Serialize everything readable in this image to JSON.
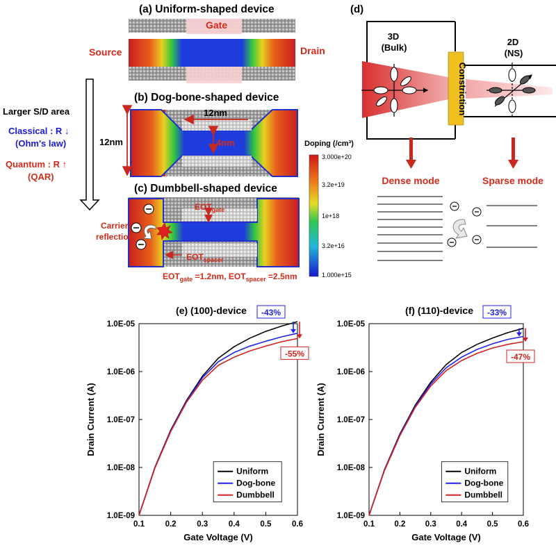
{
  "colors": {
    "blue_text": "#1a1adc",
    "red_text": "#d42a1a",
    "uniform": "#000000",
    "dogbone": "#2222ee",
    "dumbbell": "#d42020",
    "gold": "#f0c020"
  },
  "panel_a": {
    "title": "(a) Uniform-shaped device",
    "gate": "Gate",
    "source": "Source",
    "drain": "Drain"
  },
  "panel_b": {
    "title": "(b) Dog-bone-shaped device",
    "width_label": "12nm",
    "channel_label": "4nm",
    "height_label": "12nm"
  },
  "panel_c": {
    "title": "(c) Dumbbell-shaped device",
    "carrier_reflection_1": "Carrier",
    "carrier_reflection_2": "reflection",
    "eot_gate_main": "EOT",
    "eot_gate_sub": "gate",
    "eot_spacer_main": "EOT",
    "eot_spacer_sub": "spacer",
    "eq_gate_main": "EOT",
    "eq_gate_sub": "gate",
    "eq_gate_val": " =1.2nm,  ",
    "eq_spacer_main": "EOT",
    "eq_spacer_sub": "spacer",
    "eq_spacer_val": " =2.5nm",
    "electron": "⊖"
  },
  "left_text": {
    "larger": "Larger S/D area",
    "classical": "Classical : R ↓",
    "ohm": "(Ohm's law)",
    "quantum": "Quantum : R ↑",
    "qar": "(QAR)"
  },
  "colorbar": {
    "title": "Doping (/cm³)",
    "ticks": [
      "3.000e+20",
      "3.2e+19",
      "1e+18",
      "3.2e+16",
      "1.000e+15"
    ]
  },
  "panel_d": {
    "title": "(d)",
    "bulk_1": "3D",
    "bulk_2": "(Bulk)",
    "ns_1": "2D",
    "ns_2": "(NS)",
    "constriction": "Constriction",
    "dense": "Dense mode",
    "sparse": "Sparse mode",
    "electron": "⊖"
  },
  "chart_data": [
    {
      "type": "line",
      "title": "(e) (100)-device",
      "xlabel": "Gate Voltage (V)",
      "ylabel": "Drain Current (A)",
      "xlim": [
        0.1,
        0.6
      ],
      "ylim_log10": [
        -9,
        -5
      ],
      "x_ticks": [
        "0.1",
        "0.2",
        "0.3",
        "0.4",
        "0.5",
        "0.6"
      ],
      "y_ticks": [
        "1.0E-09",
        "1.0E-08",
        "1.0E-07",
        "1.0E-06",
        "1.0E-05"
      ],
      "x": [
        0.1,
        0.15,
        0.2,
        0.25,
        0.3,
        0.35,
        0.4,
        0.45,
        0.5,
        0.55,
        0.6
      ],
      "series": [
        {
          "name": "Uniform",
          "values": [
            1e-09,
            1e-08,
            6e-08,
            2.5e-07,
            8e-07,
            1.9e-06,
            3.3e-06,
            5e-06,
            6.9e-06,
            8.9e-06,
            1.1e-05
          ]
        },
        {
          "name": "Dog-bone",
          "values": [
            1e-09,
            9.8e-09,
            5.8e-08,
            2.4e-07,
            7.4e-07,
            1.6e-06,
            2.5e-06,
            3.4e-06,
            4.3e-06,
            5.3e-06,
            6.3e-06
          ]
        },
        {
          "name": "Dumbbell",
          "values": [
            1e-09,
            9.6e-09,
            5.6e-08,
            2.3e-07,
            6.6e-07,
            1.35e-06,
            2e-06,
            2.7e-06,
            3.4e-06,
            4.2e-06,
            4.9e-06
          ]
        }
      ],
      "annotations": [
        "-43%",
        "-55%"
      ]
    },
    {
      "type": "line",
      "title": "(f) (110)-device",
      "xlabel": "Gate Voltage (V)",
      "ylabel": "Drain Current (A)",
      "xlim": [
        0.1,
        0.6
      ],
      "ylim_log10": [
        -9,
        -5
      ],
      "x_ticks": [
        "0.1",
        "0.2",
        "0.3",
        "0.4",
        "0.5",
        "0.6"
      ],
      "y_ticks": [
        "1.0E-09",
        "1.0E-08",
        "1.0E-07",
        "1.0E-06",
        "1.0E-05"
      ],
      "x": [
        0.1,
        0.15,
        0.2,
        0.25,
        0.3,
        0.35,
        0.4,
        0.45,
        0.5,
        0.55,
        0.6
      ],
      "series": [
        {
          "name": "Uniform",
          "values": [
            1e-09,
            9e-09,
            5e-08,
            2e-07,
            6e-07,
            1.4e-06,
            2.5e-06,
            3.7e-06,
            5e-06,
            6.5e-06,
            8e-06
          ]
        },
        {
          "name": "Dog-bone",
          "values": [
            1e-09,
            8.8e-09,
            4.8e-08,
            1.9e-07,
            5.5e-07,
            1.2e-06,
            2e-06,
            2.9e-06,
            3.8e-06,
            4.7e-06,
            5.4e-06
          ]
        },
        {
          "name": "Dumbbell",
          "values": [
            1e-09,
            8.6e-09,
            4.6e-08,
            1.8e-07,
            5e-07,
            1.05e-06,
            1.7e-06,
            2.4e-06,
            3.1e-06,
            3.7e-06,
            4.2e-06
          ]
        }
      ],
      "annotations": [
        "-33%",
        "-47%"
      ]
    }
  ]
}
